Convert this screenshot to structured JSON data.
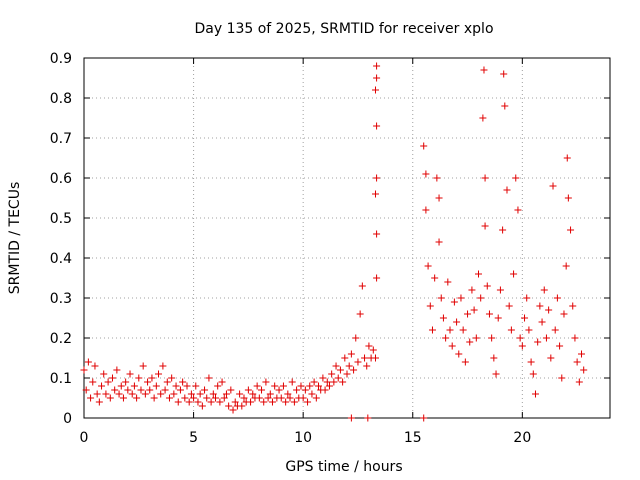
{
  "chart_data": {
    "type": "scatter",
    "title": "Day 135 of 2025, SRMTID for receiver xplo",
    "xlabel": "GPS time / hours",
    "ylabel": "SRMTID / TECUs",
    "xlim": [
      0,
      24
    ],
    "ylim": [
      0,
      0.9
    ],
    "xticks": [
      0,
      5,
      10,
      15,
      20
    ],
    "xtick_labels": [
      "0",
      "5",
      "10",
      "15",
      "20"
    ],
    "yticks": [
      0,
      0.1,
      0.2,
      0.3,
      0.4,
      0.5,
      0.6,
      0.7,
      0.8,
      0.9
    ],
    "ytick_labels": [
      "0",
      "0.1",
      "0.2",
      "0.3",
      "0.4",
      "0.5",
      "0.6",
      "0.7",
      "0.8",
      "0.9"
    ],
    "grid": true,
    "marker": "+",
    "marker_color": "#e00000",
    "series": [
      {
        "name": "SRMTID",
        "points": [
          [
            0.0,
            0.12
          ],
          [
            0.1,
            0.07
          ],
          [
            0.2,
            0.14
          ],
          [
            0.3,
            0.05
          ],
          [
            0.4,
            0.09
          ],
          [
            0.5,
            0.13
          ],
          [
            0.6,
            0.06
          ],
          [
            0.7,
            0.04
          ],
          [
            0.8,
            0.08
          ],
          [
            0.9,
            0.11
          ],
          [
            1.0,
            0.06
          ],
          [
            1.1,
            0.09
          ],
          [
            1.2,
            0.05
          ],
          [
            1.3,
            0.1
          ],
          [
            1.4,
            0.07
          ],
          [
            1.5,
            0.12
          ],
          [
            1.6,
            0.06
          ],
          [
            1.7,
            0.08
          ],
          [
            1.8,
            0.05
          ],
          [
            1.9,
            0.09
          ],
          [
            2.0,
            0.07
          ],
          [
            2.1,
            0.11
          ],
          [
            2.2,
            0.06
          ],
          [
            2.3,
            0.08
          ],
          [
            2.4,
            0.05
          ],
          [
            2.5,
            0.1
          ],
          [
            2.6,
            0.07
          ],
          [
            2.7,
            0.13
          ],
          [
            2.8,
            0.06
          ],
          [
            2.9,
            0.09
          ],
          [
            3.0,
            0.07
          ],
          [
            3.1,
            0.1
          ],
          [
            3.2,
            0.05
          ],
          [
            3.3,
            0.08
          ],
          [
            3.4,
            0.11
          ],
          [
            3.5,
            0.06
          ],
          [
            3.6,
            0.13
          ],
          [
            3.7,
            0.07
          ],
          [
            3.8,
            0.09
          ],
          [
            3.9,
            0.05
          ],
          [
            4.0,
            0.1
          ],
          [
            4.1,
            0.06
          ],
          [
            4.2,
            0.08
          ],
          [
            4.3,
            0.04
          ],
          [
            4.4,
            0.07
          ],
          [
            4.5,
            0.09
          ],
          [
            4.6,
            0.05
          ],
          [
            4.7,
            0.08
          ],
          [
            4.8,
            0.04
          ],
          [
            4.9,
            0.06
          ],
          [
            5.0,
            0.05
          ],
          [
            5.1,
            0.08
          ],
          [
            5.2,
            0.04
          ],
          [
            5.3,
            0.06
          ],
          [
            5.4,
            0.03
          ],
          [
            5.5,
            0.07
          ],
          [
            5.6,
            0.05
          ],
          [
            5.7,
            0.1
          ],
          [
            5.8,
            0.04
          ],
          [
            5.9,
            0.06
          ],
          [
            6.0,
            0.05
          ],
          [
            6.1,
            0.08
          ],
          [
            6.2,
            0.04
          ],
          [
            6.3,
            0.09
          ],
          [
            6.4,
            0.05
          ],
          [
            6.5,
            0.06
          ],
          [
            6.6,
            0.03
          ],
          [
            6.7,
            0.07
          ],
          [
            6.8,
            0.02
          ],
          [
            6.9,
            0.04
          ],
          [
            7.0,
            0.03
          ],
          [
            7.1,
            0.06
          ],
          [
            7.2,
            0.03
          ],
          [
            7.3,
            0.05
          ],
          [
            7.4,
            0.04
          ],
          [
            7.5,
            0.07
          ],
          [
            7.6,
            0.04
          ],
          [
            7.7,
            0.06
          ],
          [
            7.8,
            0.05
          ],
          [
            7.9,
            0.08
          ],
          [
            8.0,
            0.05
          ],
          [
            8.1,
            0.07
          ],
          [
            8.2,
            0.04
          ],
          [
            8.3,
            0.09
          ],
          [
            8.4,
            0.05
          ],
          [
            8.5,
            0.06
          ],
          [
            8.6,
            0.04
          ],
          [
            8.7,
            0.08
          ],
          [
            8.8,
            0.05
          ],
          [
            8.9,
            0.07
          ],
          [
            9.0,
            0.05
          ],
          [
            9.1,
            0.08
          ],
          [
            9.2,
            0.04
          ],
          [
            9.3,
            0.06
          ],
          [
            9.4,
            0.05
          ],
          [
            9.5,
            0.09
          ],
          [
            9.6,
            0.04
          ],
          [
            9.7,
            0.07
          ],
          [
            9.8,
            0.05
          ],
          [
            9.9,
            0.08
          ],
          [
            10.0,
            0.05
          ],
          [
            10.1,
            0.07
          ],
          [
            10.2,
            0.04
          ],
          [
            10.3,
            0.08
          ],
          [
            10.4,
            0.06
          ],
          [
            10.5,
            0.09
          ],
          [
            10.6,
            0.05
          ],
          [
            10.7,
            0.08
          ],
          [
            10.8,
            0.07
          ],
          [
            10.9,
            0.1
          ],
          [
            11.0,
            0.07
          ],
          [
            11.1,
            0.09
          ],
          [
            11.2,
            0.08
          ],
          [
            11.3,
            0.11
          ],
          [
            11.4,
            0.09
          ],
          [
            11.5,
            0.13
          ],
          [
            11.6,
            0.1
          ],
          [
            11.7,
            0.12
          ],
          [
            11.8,
            0.09
          ],
          [
            11.9,
            0.15
          ],
          [
            12.0,
            0.11
          ],
          [
            12.1,
            0.13
          ],
          [
            12.2,
            0.16
          ],
          [
            12.3,
            0.12
          ],
          [
            12.4,
            0.2
          ],
          [
            12.5,
            0.14
          ],
          [
            12.6,
            0.26
          ],
          [
            12.7,
            0.33
          ],
          [
            12.8,
            0.15
          ],
          [
            12.9,
            0.13
          ],
          [
            13.0,
            0.18
          ],
          [
            13.1,
            0.15
          ],
          [
            13.2,
            0.17
          ],
          [
            13.3,
            0.15
          ],
          [
            13.35,
            0.88
          ],
          [
            13.35,
            0.85
          ],
          [
            13.3,
            0.82
          ],
          [
            13.35,
            0.73
          ],
          [
            13.35,
            0.6
          ],
          [
            13.3,
            0.56
          ],
          [
            13.35,
            0.46
          ],
          [
            13.35,
            0.35
          ],
          [
            12.2,
            0.0
          ],
          [
            12.95,
            0.0
          ],
          [
            15.5,
            0.0
          ],
          [
            15.5,
            0.68
          ],
          [
            15.6,
            0.61
          ],
          [
            15.6,
            0.52
          ],
          [
            15.7,
            0.38
          ],
          [
            15.8,
            0.28
          ],
          [
            15.9,
            0.22
          ],
          [
            16.0,
            0.35
          ],
          [
            16.1,
            0.6
          ],
          [
            16.2,
            0.55
          ],
          [
            16.2,
            0.44
          ],
          [
            16.3,
            0.3
          ],
          [
            16.4,
            0.25
          ],
          [
            16.5,
            0.2
          ],
          [
            16.6,
            0.34
          ],
          [
            16.7,
            0.22
          ],
          [
            16.8,
            0.18
          ],
          [
            16.9,
            0.29
          ],
          [
            17.0,
            0.24
          ],
          [
            17.1,
            0.16
          ],
          [
            17.2,
            0.3
          ],
          [
            17.3,
            0.22
          ],
          [
            17.4,
            0.14
          ],
          [
            17.5,
            0.26
          ],
          [
            17.6,
            0.19
          ],
          [
            17.7,
            0.32
          ],
          [
            17.8,
            0.27
          ],
          [
            17.9,
            0.2
          ],
          [
            18.0,
            0.36
          ],
          [
            18.1,
            0.3
          ],
          [
            18.2,
            0.75
          ],
          [
            18.25,
            0.87
          ],
          [
            18.3,
            0.6
          ],
          [
            18.3,
            0.48
          ],
          [
            18.4,
            0.33
          ],
          [
            18.5,
            0.26
          ],
          [
            18.6,
            0.2
          ],
          [
            18.7,
            0.15
          ],
          [
            18.8,
            0.11
          ],
          [
            18.9,
            0.25
          ],
          [
            19.0,
            0.32
          ],
          [
            19.1,
            0.47
          ],
          [
            19.15,
            0.86
          ],
          [
            19.2,
            0.78
          ],
          [
            19.3,
            0.57
          ],
          [
            19.4,
            0.28
          ],
          [
            19.5,
            0.22
          ],
          [
            19.6,
            0.36
          ],
          [
            19.7,
            0.6
          ],
          [
            19.8,
            0.52
          ],
          [
            19.9,
            0.2
          ],
          [
            20.0,
            0.18
          ],
          [
            20.1,
            0.25
          ],
          [
            20.2,
            0.3
          ],
          [
            20.3,
            0.22
          ],
          [
            20.4,
            0.14
          ],
          [
            20.5,
            0.11
          ],
          [
            20.6,
            0.06
          ],
          [
            20.7,
            0.19
          ],
          [
            20.8,
            0.28
          ],
          [
            20.9,
            0.24
          ],
          [
            21.0,
            0.32
          ],
          [
            21.1,
            0.2
          ],
          [
            21.2,
            0.27
          ],
          [
            21.3,
            0.15
          ],
          [
            21.4,
            0.58
          ],
          [
            21.5,
            0.22
          ],
          [
            21.6,
            0.3
          ],
          [
            21.7,
            0.18
          ],
          [
            21.8,
            0.1
          ],
          [
            21.9,
            0.26
          ],
          [
            22.0,
            0.38
          ],
          [
            22.05,
            0.65
          ],
          [
            22.1,
            0.55
          ],
          [
            22.2,
            0.47
          ],
          [
            22.3,
            0.28
          ],
          [
            22.4,
            0.2
          ],
          [
            22.5,
            0.14
          ],
          [
            22.6,
            0.09
          ],
          [
            22.7,
            0.16
          ],
          [
            22.8,
            0.12
          ]
        ]
      }
    ]
  }
}
